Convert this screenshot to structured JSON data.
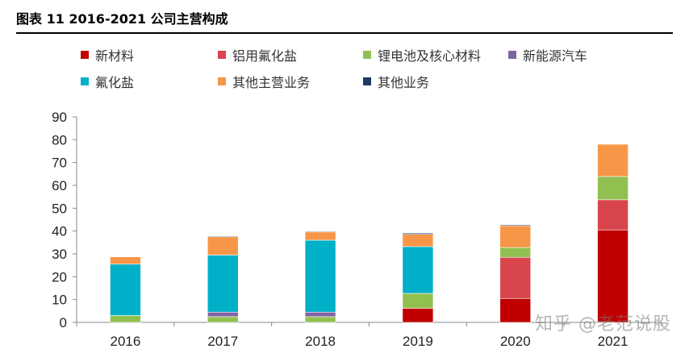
{
  "title": "图表 11 2016-2021 公司主营构成",
  "watermark": "知乎 @老范说股",
  "chart_data": {
    "type": "bar",
    "stacked": true,
    "categories": [
      "2016",
      "2017",
      "2018",
      "2019",
      "2020",
      "2021"
    ],
    "ylim": [
      0,
      90
    ],
    "yticks": [
      0,
      10,
      20,
      30,
      40,
      50,
      60,
      70,
      80,
      90
    ],
    "grid": false,
    "legend_position": "top",
    "series": [
      {
        "name": "新材料",
        "color": "#c00000",
        "values": [
          0,
          0,
          0,
          6.2,
          10.5,
          40.5
        ]
      },
      {
        "name": "铝用氟化盐",
        "color": "#d9454c",
        "values": [
          0,
          0,
          0,
          0,
          18.0,
          13.2
        ]
      },
      {
        "name": "锂电池及核心材料",
        "color": "#92c050",
        "values": [
          3.0,
          2.5,
          2.5,
          6.5,
          4.3,
          10.2
        ]
      },
      {
        "name": "新能源汽车",
        "color": "#8064a2",
        "values": [
          0,
          2.0,
          2.0,
          0,
          0,
          0
        ]
      },
      {
        "name": "氟化盐",
        "color": "#00b0c8",
        "values": [
          22.5,
          25.0,
          31.5,
          20.5,
          0,
          0
        ]
      },
      {
        "name": "其他主营业务",
        "color": "#f79646",
        "values": [
          3.2,
          8.0,
          3.6,
          5.4,
          9.5,
          14.1
        ]
      },
      {
        "name": "其他业务",
        "color": "#1f3864",
        "values": [
          0,
          0.3,
          0.3,
          0.5,
          0.4,
          0
        ]
      }
    ]
  }
}
